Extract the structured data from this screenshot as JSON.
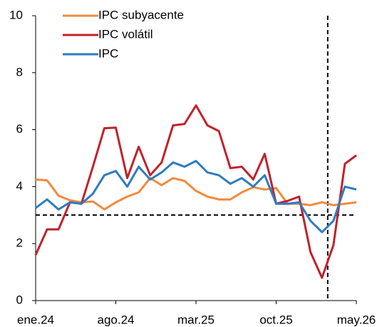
{
  "chart_data": {
    "type": "line",
    "categories": [
      "ene.24",
      null,
      null,
      null,
      null,
      null,
      null,
      "ago.24",
      null,
      null,
      null,
      null,
      null,
      null,
      "mar.25",
      null,
      null,
      null,
      null,
      null,
      null,
      "oct.25",
      null,
      null,
      null,
      null,
      null,
      null,
      "may.26"
    ],
    "series": [
      {
        "name": "IPC subyacente",
        "color": "#f28a3c",
        "values": [
          4.25,
          4.22,
          3.68,
          3.52,
          3.45,
          3.48,
          3.2,
          3.45,
          3.65,
          3.8,
          4.3,
          4.05,
          4.3,
          4.2,
          3.85,
          3.65,
          3.55,
          3.55,
          3.8,
          3.98,
          3.9,
          3.95,
          3.4,
          3.4,
          3.35,
          3.45,
          3.35,
          3.4,
          3.45
        ]
      },
      {
        "name": "IPC volátil",
        "color": "#c0222c",
        "values": [
          1.6,
          2.5,
          2.5,
          3.45,
          3.4,
          4.7,
          6.05,
          6.07,
          4.3,
          5.4,
          4.4,
          4.85,
          6.15,
          6.2,
          6.85,
          6.15,
          5.95,
          4.65,
          4.7,
          4.25,
          5.15,
          3.4,
          3.5,
          3.65,
          1.7,
          0.8,
          1.95,
          4.8,
          5.1
        ]
      },
      {
        "name": "IPC",
        "color": "#2f7cc0",
        "values": [
          3.25,
          3.55,
          3.2,
          3.45,
          3.4,
          3.75,
          4.4,
          4.55,
          4.0,
          4.7,
          4.25,
          4.5,
          4.85,
          4.7,
          4.9,
          4.5,
          4.4,
          4.1,
          4.3,
          4.0,
          4.4,
          3.4,
          3.4,
          3.45,
          2.8,
          2.4,
          2.8,
          4.0,
          3.9
        ]
      }
    ],
    "ylim": [
      0,
      10
    ],
    "yticks": [
      0,
      2,
      4,
      6,
      8,
      10
    ],
    "hline": 3,
    "vline": 25.5,
    "legend": "top-left"
  }
}
